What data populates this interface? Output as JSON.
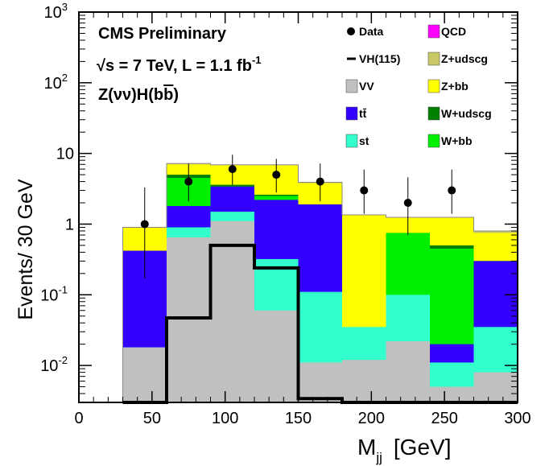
{
  "chart_data": {
    "type": "bar",
    "stacked": true,
    "log_scale_y": true,
    "ylim": [
      0.003,
      1000
    ],
    "xlim": [
      0,
      300
    ],
    "xlabel": "M",
    "xlabel_sub": "jj",
    "xlabel_unit": "[GeV]",
    "ylabel": "Events/ 30 GeV",
    "x_ticks": [
      "0",
      "50",
      "100",
      "150",
      "200",
      "250",
      "300"
    ],
    "y_ticks": [
      {
        "value": 1000,
        "base": "10",
        "exp": "3"
      },
      {
        "value": 100,
        "base": "10",
        "exp": "2"
      },
      {
        "value": 10,
        "base": "10",
        "exp": ""
      },
      {
        "value": 1,
        "base": "1",
        "exp": ""
      },
      {
        "value": 0.1,
        "base": "10",
        "exp": "-1"
      },
      {
        "value": 0.01,
        "base": "10",
        "exp": "-2"
      }
    ],
    "annotations": {
      "line1": "CMS Preliminary",
      "line2_sqrt": "√",
      "line2_a": "s = 7 TeV, L = 1.1 fb",
      "line2_exp": "-1",
      "line3_a": "Z(νν)H(b",
      "line3_b": "b",
      "line3_c": ")"
    },
    "bins": {
      "edges": [
        30,
        60,
        90,
        120,
        150,
        180,
        210,
        240,
        270,
        300
      ]
    },
    "stack_order": [
      "VV",
      "st",
      "tt",
      "W+bb",
      "W+udscg",
      "Z+bb",
      "Z+udscg",
      "QCD"
    ],
    "stack_tops": {
      "VV": [
        0.018,
        0.65,
        1.1,
        0.06,
        0.011,
        0.012,
        0.022,
        0.005,
        0.008
      ],
      "st": [
        0.018,
        0.9,
        1.5,
        0.32,
        0.11,
        0.035,
        0.1,
        0.011,
        0.035
      ],
      "tt": [
        0.42,
        1.8,
        3.4,
        2.2,
        1.9,
        0.03,
        0.09,
        0.02,
        0.3
      ],
      "W+bb": [
        0.42,
        4.5,
        3.4,
        2.5,
        1.9,
        0.03,
        0.75,
        0.45,
        0.3
      ],
      "W+udscg": [
        0.42,
        5.0,
        3.6,
        2.6,
        1.9,
        0.03,
        0.75,
        0.5,
        0.3
      ],
      "Z+bb": [
        0.9,
        7.0,
        6.8,
        6.8,
        3.8,
        1.35,
        1.25,
        1.25,
        0.75
      ],
      "Z+udscg": [
        0.9,
        7.2,
        6.9,
        6.9,
        3.9,
        1.35,
        1.25,
        1.25,
        0.8
      ],
      "QCD": [
        0.9,
        7.2,
        6.9,
        6.9,
        3.9,
        1.35,
        1.25,
        1.25,
        0.8
      ]
    },
    "signal": {
      "name": "VH(115)",
      "edges": [
        30,
        60,
        90,
        120,
        150,
        180,
        210,
        240,
        270,
        300
      ],
      "values": [
        0.0,
        0.047,
        0.5,
        0.24,
        0.0034,
        0.0,
        0.0,
        0.0,
        0.0
      ]
    },
    "data_points": {
      "name": "Data",
      "x": [
        45,
        75,
        105,
        135,
        165,
        195,
        225,
        255
      ],
      "y": [
        1,
        4,
        6,
        5,
        4,
        3,
        2,
        3
      ],
      "err_up": [
        2.3,
        3.2,
        3.6,
        3.4,
        3.2,
        2.9,
        2.6,
        2.9
      ],
      "err_down": [
        0.83,
        1.9,
        2.4,
        2.2,
        1.9,
        1.6,
        1.3,
        1.6
      ]
    },
    "legend": [
      {
        "label": "Data",
        "kind": "marker"
      },
      {
        "label": "QCD",
        "color": "#ff00ff",
        "kind": "box"
      },
      {
        "label": "VH(115)",
        "kind": "line"
      },
      {
        "label": "Z+udscg",
        "color": "#c8c864",
        "kind": "box"
      },
      {
        "label": "VV",
        "color": "#c0c0c0",
        "kind": "box"
      },
      {
        "label": "Z+bb",
        "color": "#ffff00",
        "kind": "box"
      },
      {
        "label": "tt̄",
        "color": "#3300ff",
        "kind": "box"
      },
      {
        "label": "W+udscg",
        "color": "#008000",
        "kind": "box"
      },
      {
        "label": "st",
        "color": "#33ffcc",
        "kind": "box"
      },
      {
        "label": "W+bb",
        "color": "#00ee00",
        "kind": "box"
      }
    ],
    "legend_position": "top-right",
    "colors": {
      "VV": "#c0c0c0",
      "st": "#33ffcc",
      "tt": "#3300ff",
      "W+bb": "#00ee00",
      "W+udscg": "#008000",
      "Z+bb": "#ffff00",
      "Z+udscg": "#c8c864",
      "QCD": "#ff00ff"
    }
  }
}
